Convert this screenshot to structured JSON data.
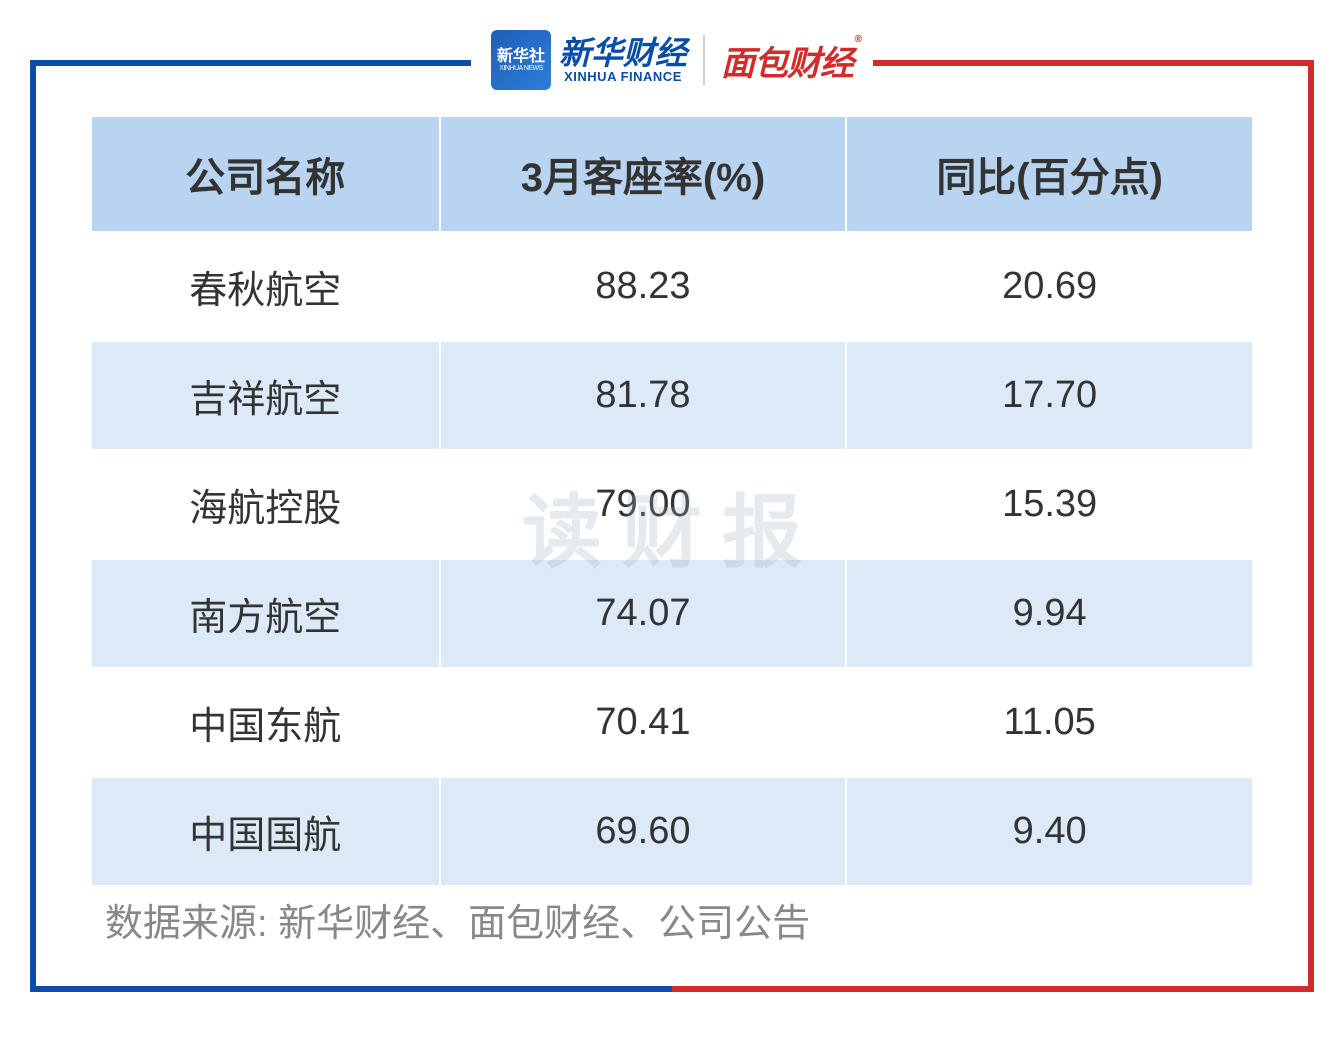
{
  "logos": {
    "xinhua_badge_text": "新华社",
    "xinhua_badge_sub": "XINHUA NEWS",
    "xinhua_finance_cn": "新华财经",
    "xinhua_finance_en": "XINHUA FINANCE",
    "mianbao": "面包财经",
    "registered": "®"
  },
  "watermark": "读财报",
  "table": {
    "type": "table",
    "columns": [
      "公司名称",
      "3月客座率(%)",
      "同比(百分点)"
    ],
    "rows": [
      [
        "春秋航空",
        "88.23",
        "20.69"
      ],
      [
        "吉祥航空",
        "81.78",
        "17.70"
      ],
      [
        "海航控股",
        "79.00",
        "15.39"
      ],
      [
        "南方航空",
        "74.07",
        "9.94"
      ],
      [
        "中国东航",
        "70.41",
        "11.05"
      ],
      [
        "中国国航",
        "69.60",
        "9.40"
      ]
    ],
    "header_bg": "#b8d4f0",
    "row_odd_bg": "#ffffff",
    "row_even_bg": "#dce9f7",
    "text_color": "#333333",
    "header_fontsize": 40,
    "cell_fontsize": 38,
    "border_color": "#ffffff"
  },
  "source": "数据来源: 新华财经、面包财经、公司公告",
  "frame": {
    "left_color": "#0a4da6",
    "right_color": "#d22b2b",
    "border_width": 6
  },
  "source_color": "#888888",
  "watermark_color": "rgba(150,170,190,0.25)"
}
